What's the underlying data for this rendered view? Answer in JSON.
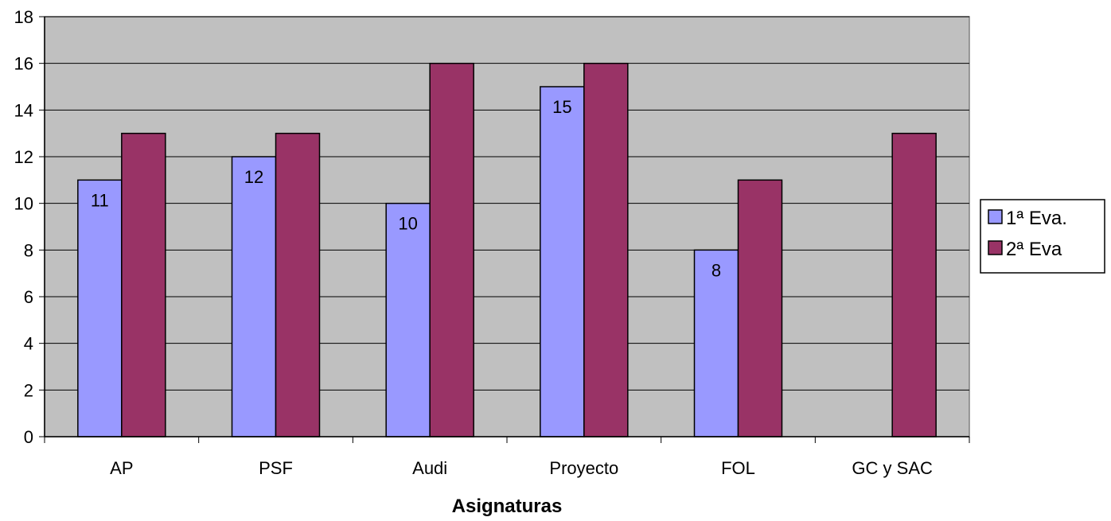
{
  "chart_data": {
    "type": "bar",
    "title": "",
    "xlabel": "Asignaturas",
    "ylabel": "",
    "categories": [
      "AP",
      "PSF",
      "Audi",
      "Proyecto",
      "FOL",
      "GC y SAC"
    ],
    "series": [
      {
        "name": "1ª Eva.",
        "values": [
          11,
          12,
          10,
          15,
          8,
          null
        ],
        "color": "#9999ff",
        "show_data_labels": true
      },
      {
        "name": "2ª Eva",
        "values": [
          13,
          13,
          16,
          16,
          11,
          13
        ],
        "color": "#993366",
        "show_data_labels": false
      }
    ],
    "ylim": [
      0,
      18
    ],
    "yticks": [
      "0",
      "2",
      "4",
      "6",
      "8",
      "10",
      "12",
      "14",
      "16",
      "18"
    ],
    "grid": true,
    "plot_background": "#c0c0c0",
    "legend_position": "right"
  }
}
